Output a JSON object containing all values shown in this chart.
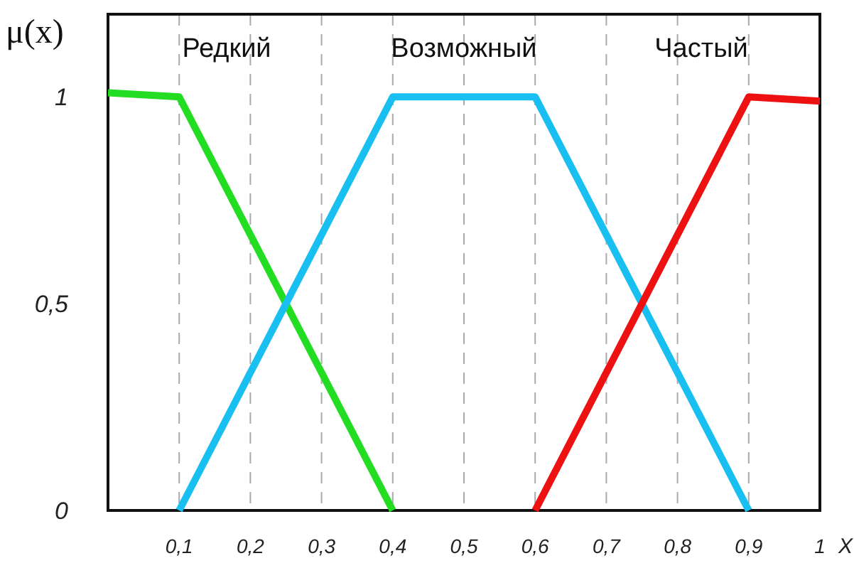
{
  "chart_data": {
    "type": "line",
    "xlabel": "X",
    "ylabel": "μ(x)",
    "series": [
      {
        "name": "Редкий",
        "color": "#22dd22",
        "x": [
          0,
          0.1,
          0.4
        ],
        "values": [
          1.01,
          1,
          0
        ]
      },
      {
        "name": "Возможный",
        "color": "#19bff0",
        "x": [
          0.1,
          0.4,
          0.6,
          0.9
        ],
        "values": [
          0,
          1,
          1,
          0
        ]
      },
      {
        "name": "Частый",
        "color": "#ee1111",
        "x": [
          0.6,
          0.9,
          1
        ],
        "values": [
          0,
          1,
          0.99
        ]
      }
    ],
    "xlim": [
      0,
      1
    ],
    "ylim": [
      0,
      1.2
    ],
    "xticks": [
      {
        "value": 0.1,
        "label": "0,1"
      },
      {
        "value": 0.2,
        "label": "0,2"
      },
      {
        "value": 0.3,
        "label": "0,3"
      },
      {
        "value": 0.4,
        "label": "0,4"
      },
      {
        "value": 0.5,
        "label": "0,5"
      },
      {
        "value": 0.6,
        "label": "0,6"
      },
      {
        "value": 0.7,
        "label": "0,7"
      },
      {
        "value": 0.8,
        "label": "0,8"
      },
      {
        "value": 0.9,
        "label": "0,9"
      },
      1
    ],
    "yticks": [
      0,
      {
        "value": 0.5,
        "label": "0,5"
      },
      1
    ],
    "grid": "x",
    "legend": false,
    "marker": "none",
    "line_style": "solid"
  }
}
